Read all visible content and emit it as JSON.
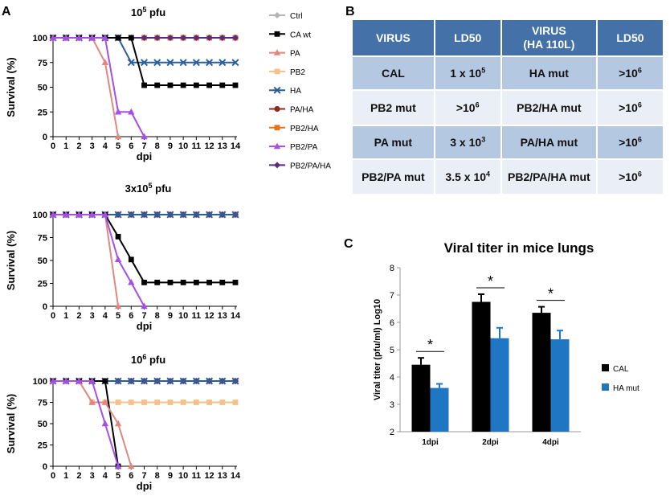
{
  "panel_labels": {
    "a": "A",
    "b": "B",
    "c": "C"
  },
  "legend": [
    {
      "name": "Ctrl",
      "color": "#b3b3b3",
      "marker": "diamond"
    },
    {
      "name": "CA wt",
      "color": "#000000",
      "marker": "square"
    },
    {
      "name": "PA",
      "color": "#e08880",
      "marker": "triangle"
    },
    {
      "name": "PB2",
      "color": "#f5c08a",
      "marker": "square"
    },
    {
      "name": "HA",
      "color": "#2c5f9a",
      "marker": "x"
    },
    {
      "name": "PA/HA",
      "color": "#8b2a22",
      "marker": "circle"
    },
    {
      "name": "PB2/HA",
      "color": "#e8731e",
      "marker": "square"
    },
    {
      "name": "PB2/PA",
      "color": "#a64ee6",
      "marker": "triangle"
    },
    {
      "name": "PB2/PA/HA",
      "color": "#5b2a86",
      "marker": "diamond"
    }
  ],
  "table": {
    "headers": [
      {
        "line1": "VIRUS",
        "line2": ""
      },
      {
        "line1": "LD50",
        "line2": ""
      },
      {
        "line1": "VIRUS",
        "line2": "(HA 110L)"
      },
      {
        "line1": "LD50",
        "line2": ""
      }
    ],
    "rows": [
      [
        {
          "base": "CAL",
          "sup": ""
        },
        {
          "base": "1 x 10",
          "sup": "5"
        },
        {
          "base": "HA mut",
          "sup": ""
        },
        {
          "base": ">10",
          "sup": "6"
        }
      ],
      [
        {
          "base": "PB2 mut",
          "sup": ""
        },
        {
          "base": ">10",
          "sup": "6"
        },
        {
          "base": "PB2/HA mut",
          "sup": ""
        },
        {
          "base": ">10",
          "sup": "6"
        }
      ],
      [
        {
          "base": "PA mut",
          "sup": ""
        },
        {
          "base": "3 x 10",
          "sup": "3"
        },
        {
          "base": "PA/HA mut",
          "sup": ""
        },
        {
          "base": ">10",
          "sup": "6"
        }
      ],
      [
        {
          "base": "PB2/PA mut",
          "sup": ""
        },
        {
          "base": "3.5 x 10",
          "sup": "4"
        },
        {
          "base": "PB2/PA/HA mut",
          "sup": ""
        },
        {
          "base": ">10",
          "sup": "6"
        }
      ]
    ]
  },
  "chart_data": [
    {
      "type": "line",
      "title_base": "10",
      "title_sup": "5",
      "title_rest": " pfu",
      "xlabel": "dpi",
      "ylabel": "Survival (%)",
      "xlim": [
        0,
        14
      ],
      "ylim": [
        0,
        100
      ],
      "xticks": [
        "0",
        "1",
        "2",
        "3",
        "4",
        "5",
        "6",
        "7",
        "8",
        "9",
        "10",
        "11",
        "12",
        "13",
        "14"
      ],
      "yticks": [
        "0",
        "25",
        "50",
        "75",
        "100"
      ],
      "series": [
        {
          "name": "Ctrl",
          "x": [
            0,
            1,
            2,
            3,
            4,
            5,
            6,
            7,
            8,
            9,
            10,
            11,
            12,
            13,
            14
          ],
          "values": [
            100,
            100,
            100,
            100,
            100,
            100,
            100,
            100,
            100,
            100,
            100,
            100,
            100,
            100,
            100
          ]
        },
        {
          "name": "PB2",
          "x": [
            0,
            1,
            2,
            3,
            4,
            5,
            6,
            7,
            8,
            9,
            10,
            11,
            12,
            13,
            14
          ],
          "values": [
            100,
            100,
            100,
            100,
            100,
            100,
            100,
            100,
            100,
            100,
            100,
            100,
            100,
            100,
            100
          ]
        },
        {
          "name": "PA/HA",
          "x": [
            0,
            1,
            2,
            3,
            4,
            5,
            6,
            7,
            8,
            9,
            10,
            11,
            12,
            13,
            14
          ],
          "values": [
            100,
            100,
            100,
            100,
            100,
            100,
            100,
            100,
            100,
            100,
            100,
            100,
            100,
            100,
            100
          ]
        },
        {
          "name": "PB2/HA",
          "x": [
            0,
            1,
            2,
            3,
            4,
            5,
            6,
            7,
            8,
            9,
            10,
            11,
            12,
            13,
            14
          ],
          "values": [
            100,
            100,
            100,
            100,
            100,
            100,
            100,
            100,
            100,
            100,
            100,
            100,
            100,
            100,
            100
          ]
        },
        {
          "name": "PB2/PA/HA",
          "x": [
            0,
            1,
            2,
            3,
            4,
            5,
            6,
            7,
            8,
            9,
            10,
            11,
            12,
            13,
            14
          ],
          "values": [
            100,
            100,
            100,
            100,
            100,
            100,
            100,
            100,
            100,
            100,
            100,
            100,
            100,
            100,
            100
          ]
        },
        {
          "name": "HA",
          "x": [
            0,
            1,
            2,
            3,
            4,
            5,
            6,
            7,
            8,
            9,
            10,
            11,
            12,
            13,
            14
          ],
          "values": [
            100,
            100,
            100,
            100,
            100,
            100,
            75,
            75,
            75,
            75,
            75,
            75,
            75,
            75,
            75
          ]
        },
        {
          "name": "CA wt",
          "x": [
            0,
            1,
            2,
            3,
            4,
            5,
            6,
            7,
            8,
            9,
            10,
            11,
            12,
            13,
            14
          ],
          "values": [
            100,
            100,
            100,
            100,
            100,
            100,
            100,
            52,
            52,
            52,
            52,
            52,
            52,
            52,
            52
          ]
        },
        {
          "name": "PA",
          "x": [
            0,
            1,
            2,
            3,
            4,
            5
          ],
          "values": [
            100,
            100,
            100,
            100,
            75,
            0
          ]
        },
        {
          "name": "PB2/PA",
          "x": [
            0,
            1,
            2,
            3,
            4,
            5,
            6,
            7
          ],
          "values": [
            100,
            100,
            100,
            100,
            100,
            25,
            25,
            0
          ]
        }
      ]
    },
    {
      "type": "line",
      "title_base": "3x10",
      "title_sup": "5",
      "title_rest": " pfu",
      "xlabel": "dpi",
      "ylabel": "Survival (%)",
      "xlim": [
        0,
        14
      ],
      "ylim": [
        0,
        100
      ],
      "xticks": [
        "0",
        "1",
        "2",
        "3",
        "4",
        "5",
        "6",
        "7",
        "8",
        "9",
        "10",
        "11",
        "12",
        "13",
        "14"
      ],
      "yticks": [
        "0",
        "25",
        "50",
        "75",
        "100"
      ],
      "series": [
        {
          "name": "Ctrl",
          "x": [
            0,
            1,
            2,
            3,
            4,
            5,
            6,
            7,
            8,
            9,
            10,
            11,
            12,
            13,
            14
          ],
          "values": [
            100,
            100,
            100,
            100,
            100,
            100,
            100,
            100,
            100,
            100,
            100,
            100,
            100,
            100,
            100
          ]
        },
        {
          "name": "PB2",
          "x": [
            0,
            1,
            2,
            3,
            4,
            5,
            6,
            7,
            8,
            9,
            10,
            11,
            12,
            13,
            14
          ],
          "values": [
            100,
            100,
            100,
            100,
            100,
            100,
            100,
            100,
            100,
            100,
            100,
            100,
            100,
            100,
            100
          ]
        },
        {
          "name": "PA/HA",
          "x": [
            0,
            1,
            2,
            3,
            4,
            5,
            6,
            7,
            8,
            9,
            10,
            11,
            12,
            13,
            14
          ],
          "values": [
            100,
            100,
            100,
            100,
            100,
            100,
            100,
            100,
            100,
            100,
            100,
            100,
            100,
            100,
            100
          ]
        },
        {
          "name": "PB2/HA",
          "x": [
            0,
            1,
            2,
            3,
            4,
            5,
            6,
            7,
            8,
            9,
            10,
            11,
            12,
            13,
            14
          ],
          "values": [
            100,
            100,
            100,
            100,
            100,
            100,
            100,
            100,
            100,
            100,
            100,
            100,
            100,
            100,
            100
          ]
        },
        {
          "name": "PB2/PA/HA",
          "x": [
            0,
            1,
            2,
            3,
            4,
            5,
            6,
            7,
            8,
            9,
            10,
            11,
            12,
            13,
            14
          ],
          "values": [
            100,
            100,
            100,
            100,
            100,
            100,
            100,
            100,
            100,
            100,
            100,
            100,
            100,
            100,
            100
          ]
        },
        {
          "name": "HA",
          "x": [
            0,
            1,
            2,
            3,
            4,
            5,
            6,
            7,
            8,
            9,
            10,
            11,
            12,
            13,
            14
          ],
          "values": [
            100,
            100,
            100,
            100,
            100,
            100,
            100,
            100,
            100,
            100,
            100,
            100,
            100,
            100,
            100
          ]
        },
        {
          "name": "CA wt",
          "x": [
            0,
            1,
            2,
            3,
            4,
            5,
            6,
            7,
            8,
            9,
            10,
            11,
            12,
            13,
            14
          ],
          "values": [
            100,
            100,
            100,
            100,
            100,
            76,
            51,
            26,
            26,
            26,
            26,
            26,
            26,
            26,
            26
          ]
        },
        {
          "name": "PA",
          "x": [
            0,
            1,
            2,
            3,
            4,
            5
          ],
          "values": [
            100,
            100,
            100,
            100,
            100,
            0
          ]
        },
        {
          "name": "PB2/PA",
          "x": [
            0,
            1,
            2,
            3,
            4,
            5,
            6,
            7
          ],
          "values": [
            100,
            100,
            100,
            100,
            100,
            51,
            26,
            0
          ]
        }
      ]
    },
    {
      "type": "line",
      "title_base": "10",
      "title_sup": "6",
      "title_rest": " pfu",
      "xlabel": "dpi",
      "ylabel": "Survival (%)",
      "xlim": [
        0,
        14
      ],
      "ylim": [
        0,
        100
      ],
      "xticks": [
        "0",
        "1",
        "2",
        "3",
        "4",
        "5",
        "6",
        "7",
        "8",
        "9",
        "10",
        "11",
        "12",
        "13",
        "14"
      ],
      "yticks": [
        "0",
        "25",
        "50",
        "75",
        "100"
      ],
      "series": [
        {
          "name": "Ctrl",
          "x": [
            0,
            1,
            2,
            3,
            4,
            5,
            6,
            7,
            8,
            9,
            10,
            11,
            12,
            13,
            14
          ],
          "values": [
            100,
            100,
            100,
            100,
            100,
            100,
            100,
            100,
            100,
            100,
            100,
            100,
            100,
            100,
            100
          ]
        },
        {
          "name": "PA/HA",
          "x": [
            0,
            1,
            2,
            3,
            4,
            5,
            6,
            7,
            8,
            9,
            10,
            11,
            12,
            13,
            14
          ],
          "values": [
            100,
            100,
            100,
            100,
            100,
            100,
            100,
            100,
            100,
            100,
            100,
            100,
            100,
            100,
            100
          ]
        },
        {
          "name": "PB2/HA",
          "x": [
            0,
            1,
            2,
            3,
            4,
            5,
            6,
            7,
            8,
            9,
            10,
            11,
            12,
            13,
            14
          ],
          "values": [
            100,
            100,
            100,
            100,
            100,
            100,
            100,
            100,
            100,
            100,
            100,
            100,
            100,
            100,
            100
          ]
        },
        {
          "name": "PB2/PA/HA",
          "x": [
            0,
            1,
            2,
            3,
            4,
            5,
            6,
            7,
            8,
            9,
            10,
            11,
            12,
            13,
            14
          ],
          "values": [
            100,
            100,
            100,
            100,
            100,
            100,
            100,
            100,
            100,
            100,
            100,
            100,
            100,
            100,
            100
          ]
        },
        {
          "name": "HA",
          "x": [
            0,
            1,
            2,
            3,
            4,
            5,
            6,
            7,
            8,
            9,
            10,
            11,
            12,
            13,
            14
          ],
          "values": [
            100,
            100,
            100,
            100,
            100,
            100,
            100,
            100,
            100,
            100,
            100,
            100,
            100,
            100,
            100
          ]
        },
        {
          "name": "PB2",
          "x": [
            0,
            1,
            2,
            3,
            4,
            5,
            6,
            7,
            8,
            9,
            10,
            11,
            12,
            13,
            14
          ],
          "values": [
            100,
            100,
            100,
            75,
            75,
            75,
            75,
            75,
            75,
            75,
            75,
            75,
            75,
            75,
            75
          ]
        },
        {
          "name": "CA wt",
          "x": [
            0,
            1,
            2,
            3,
            4,
            5
          ],
          "values": [
            100,
            100,
            100,
            100,
            100,
            0
          ]
        },
        {
          "name": "PA",
          "x": [
            0,
            1,
            2,
            3,
            4,
            5,
            6
          ],
          "values": [
            100,
            100,
            100,
            75,
            75,
            50,
            0
          ]
        },
        {
          "name": "PB2/PA",
          "x": [
            0,
            1,
            2,
            3,
            4,
            5
          ],
          "values": [
            100,
            100,
            100,
            100,
            50,
            0
          ]
        }
      ]
    },
    {
      "type": "bar",
      "title": "Viral titer in mice lungs",
      "xlabel": "",
      "ylabel": "Viral titer (pfu/ml) Log10",
      "categories": [
        "1dpi",
        "2dpi",
        "4dpi"
      ],
      "ylim": [
        2,
        8
      ],
      "yticks": [
        "2",
        "3",
        "4",
        "5",
        "6",
        "7",
        "8"
      ],
      "series": [
        {
          "name": "CAL",
          "color": "#000000",
          "values": [
            4.45,
            6.75,
            6.35
          ],
          "errors": [
            0.25,
            0.28,
            0.22
          ]
        },
        {
          "name": "HA mut",
          "color": "#1f77c4",
          "values": [
            3.6,
            5.42,
            5.38
          ],
          "errors": [
            0.15,
            0.38,
            0.32
          ]
        }
      ],
      "annotations": [
        "*",
        "*",
        "*"
      ]
    }
  ]
}
